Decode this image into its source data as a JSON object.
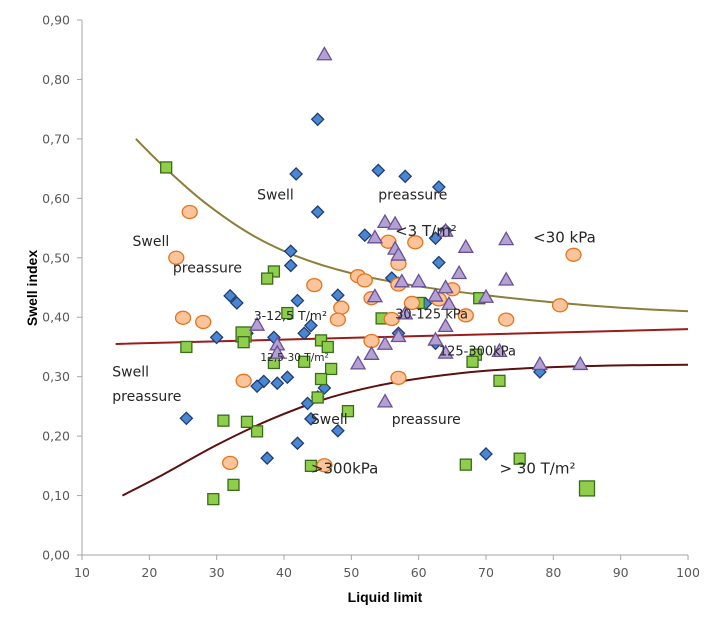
{
  "chart_data": {
    "type": "scatter",
    "title": "",
    "xlabel": "Liquid limit",
    "ylabel": "Swell index",
    "xlim": [
      10,
      100
    ],
    "ylim": [
      0,
      0.9
    ],
    "x_ticks": [
      10,
      20,
      30,
      40,
      50,
      60,
      70,
      80,
      90,
      100
    ],
    "x_tick_labels": [
      "10",
      "20",
      "30",
      "40",
      "50",
      "60",
      "70",
      "80",
      "90",
      "100"
    ],
    "y_ticks": [
      0,
      0.1,
      0.2,
      0.3,
      0.4,
      0.5,
      0.6,
      0.7,
      0.8,
      0.9
    ],
    "y_tick_labels": [
      "0,00",
      "0,10",
      "0,20",
      "0,30",
      "0,40",
      "0,50",
      "0,60",
      "0,70",
      "0,80",
      "0,90"
    ],
    "grid": false,
    "legend": "none",
    "series": [
      {
        "name": "diamonds",
        "marker": "diamond",
        "fill": "#4a86d4",
        "stroke": "#1f3f6e",
        "points": [
          [
            45.0,
            0.733
          ],
          [
            41.8,
            0.641
          ],
          [
            54.0,
            0.647
          ],
          [
            58.0,
            0.637
          ],
          [
            63.0,
            0.619
          ],
          [
            45.0,
            0.577
          ],
          [
            41.0,
            0.511
          ],
          [
            41.0,
            0.487
          ],
          [
            52.0,
            0.538
          ],
          [
            64.0,
            0.546
          ],
          [
            62.5,
            0.533
          ],
          [
            63.0,
            0.492
          ],
          [
            56.0,
            0.466
          ],
          [
            57.0,
            0.457
          ],
          [
            42.0,
            0.428
          ],
          [
            48.0,
            0.437
          ],
          [
            32.0,
            0.436
          ],
          [
            33.0,
            0.424
          ],
          [
            44.0,
            0.386
          ],
          [
            38.5,
            0.366
          ],
          [
            43.0,
            0.373
          ],
          [
            30.0,
            0.366
          ],
          [
            61.0,
            0.423
          ],
          [
            57.0,
            0.373
          ],
          [
            62.5,
            0.356
          ],
          [
            34.5,
            0.373
          ],
          [
            37.0,
            0.292
          ],
          [
            39.0,
            0.289
          ],
          [
            40.5,
            0.299
          ],
          [
            36.0,
            0.284
          ],
          [
            43.5,
            0.255
          ],
          [
            45.0,
            0.266
          ],
          [
            46.0,
            0.281
          ],
          [
            44.0,
            0.229
          ],
          [
            48.0,
            0.209
          ],
          [
            42.0,
            0.188
          ],
          [
            37.5,
            0.163
          ],
          [
            25.5,
            0.23
          ],
          [
            78.0,
            0.308
          ],
          [
            70.0,
            0.17
          ]
        ]
      },
      {
        "name": "squares",
        "marker": "square",
        "fill": "#8fce4a",
        "stroke": "#3a6b1a",
        "points": [
          [
            22.5,
            0.652
          ],
          [
            38.5,
            0.477
          ],
          [
            37.5,
            0.465
          ],
          [
            40.5,
            0.407
          ],
          [
            34.0,
            0.371
          ],
          [
            34.0,
            0.358
          ],
          [
            25.5,
            0.35
          ],
          [
            43.0,
            0.325
          ],
          [
            38.5,
            0.323
          ],
          [
            45.5,
            0.361
          ],
          [
            46.5,
            0.35
          ],
          [
            47.0,
            0.313
          ],
          [
            45.5,
            0.296
          ],
          [
            45.0,
            0.265
          ],
          [
            49.5,
            0.242
          ],
          [
            36.0,
            0.208
          ],
          [
            34.5,
            0.224
          ],
          [
            31.0,
            0.226
          ],
          [
            32.5,
            0.118
          ],
          [
            29.5,
            0.094
          ],
          [
            44.0,
            0.15
          ],
          [
            60.0,
            0.424
          ],
          [
            69.0,
            0.432
          ],
          [
            68.5,
            0.337
          ],
          [
            68.0,
            0.325
          ],
          [
            72.0,
            0.293
          ],
          [
            67.0,
            0.152
          ],
          [
            75.0,
            0.162
          ],
          [
            85.0,
            0.112
          ],
          [
            54.5,
            0.398
          ]
        ]
      },
      {
        "name": "circles",
        "marker": "circle",
        "fill": "#fbc49a",
        "stroke": "#e6741d",
        "points": [
          [
            26.0,
            0.577
          ],
          [
            24.0,
            0.5
          ],
          [
            25.0,
            0.399
          ],
          [
            28.0,
            0.392
          ],
          [
            44.5,
            0.454
          ],
          [
            51.0,
            0.469
          ],
          [
            52.0,
            0.462
          ],
          [
            55.5,
            0.527
          ],
          [
            59.5,
            0.526
          ],
          [
            57.0,
            0.49
          ],
          [
            57.0,
            0.455
          ],
          [
            48.5,
            0.416
          ],
          [
            48.0,
            0.396
          ],
          [
            53.0,
            0.432
          ],
          [
            56.0,
            0.397
          ],
          [
            59.0,
            0.424
          ],
          [
            63.0,
            0.43
          ],
          [
            65.0,
            0.447
          ],
          [
            67.0,
            0.403
          ],
          [
            73.0,
            0.396
          ],
          [
            81.0,
            0.42
          ],
          [
            83.0,
            0.505
          ],
          [
            53.0,
            0.36
          ],
          [
            57.0,
            0.298
          ],
          [
            34.0,
            0.293
          ],
          [
            32.0,
            0.155
          ],
          [
            46.0,
            0.151
          ]
        ]
      },
      {
        "name": "triangles",
        "marker": "triangle",
        "fill": "#b3a2d1",
        "stroke": "#6a4f99",
        "points": [
          [
            46.0,
            0.842
          ],
          [
            55.0,
            0.56
          ],
          [
            56.5,
            0.557
          ],
          [
            53.5,
            0.534
          ],
          [
            56.5,
            0.515
          ],
          [
            57.0,
            0.505
          ],
          [
            64.0,
            0.545
          ],
          [
            67.0,
            0.518
          ],
          [
            73.0,
            0.531
          ],
          [
            66.0,
            0.474
          ],
          [
            57.5,
            0.46
          ],
          [
            60.0,
            0.46
          ],
          [
            64.0,
            0.45
          ],
          [
            62.5,
            0.436
          ],
          [
            64.5,
            0.422
          ],
          [
            73.0,
            0.463
          ],
          [
            70.0,
            0.434
          ],
          [
            53.5,
            0.435
          ],
          [
            58.0,
            0.406
          ],
          [
            64.0,
            0.385
          ],
          [
            62.5,
            0.362
          ],
          [
            64.0,
            0.34
          ],
          [
            57.0,
            0.368
          ],
          [
            55.0,
            0.355
          ],
          [
            53.0,
            0.338
          ],
          [
            51.0,
            0.322
          ],
          [
            72.0,
            0.343
          ],
          [
            36.0,
            0.387
          ],
          [
            39.0,
            0.354
          ],
          [
            39.0,
            0.34
          ],
          [
            55.0,
            0.258
          ],
          [
            78.0,
            0.321
          ],
          [
            84.0,
            0.321
          ]
        ]
      }
    ],
    "curves": [
      {
        "name": "upper-boundary-curve",
        "color": "#8b7f3a",
        "points": [
          [
            18,
            0.7
          ],
          [
            22,
            0.655
          ],
          [
            28,
            0.595
          ],
          [
            35,
            0.54
          ],
          [
            42,
            0.502
          ],
          [
            50,
            0.474
          ],
          [
            60,
            0.452
          ],
          [
            70,
            0.437
          ],
          [
            80,
            0.425
          ],
          [
            90,
            0.416
          ],
          [
            100,
            0.41
          ]
        ]
      },
      {
        "name": "middle-boundary-line",
        "color": "#9b1c1c",
        "points": [
          [
            15,
            0.355
          ],
          [
            100,
            0.38
          ]
        ]
      },
      {
        "name": "lower-boundary-curve",
        "color": "#5c1010",
        "points": [
          [
            16,
            0.1
          ],
          [
            22,
            0.135
          ],
          [
            30,
            0.185
          ],
          [
            38,
            0.228
          ],
          [
            46,
            0.262
          ],
          [
            54,
            0.285
          ],
          [
            62,
            0.3
          ],
          [
            70,
            0.31
          ],
          [
            80,
            0.316
          ],
          [
            90,
            0.319
          ],
          [
            100,
            0.32
          ]
        ]
      }
    ],
    "annotations": [
      {
        "text": "Swell",
        "x": 36.0,
        "y": 0.598,
        "size": 14
      },
      {
        "text": "preassure",
        "x": 54.0,
        "y": 0.598,
        "size": 14
      },
      {
        "text": "<3 T/m²",
        "x": 56.5,
        "y": 0.537,
        "size": 15
      },
      {
        "text": "<30 kPa",
        "x": 77.0,
        "y": 0.526,
        "size": 15
      },
      {
        "text": "Swell",
        "x": 17.5,
        "y": 0.52,
        "size": 14
      },
      {
        "text": "preassure",
        "x": 23.5,
        "y": 0.475,
        "size": 14
      },
      {
        "text": "3-12,5 T/m²",
        "x": 35.5,
        "y": 0.395,
        "size": 12.5
      },
      {
        "text": "30-125 kPa",
        "x": 56.5,
        "y": 0.398,
        "size": 13
      },
      {
        "text": "12,5-30 T/m²",
        "x": 36.5,
        "y": 0.326,
        "size": 10.5
      },
      {
        "text": "125-300kPa",
        "x": 63.0,
        "y": 0.336,
        "size": 13
      },
      {
        "text": "Swell",
        "x": 14.5,
        "y": 0.3,
        "size": 14
      },
      {
        "text": "preassure",
        "x": 14.5,
        "y": 0.259,
        "size": 14
      },
      {
        "text": "Swell",
        "x": 44.0,
        "y": 0.22,
        "size": 14
      },
      {
        "text": "preassure",
        "x": 56.0,
        "y": 0.22,
        "size": 14
      },
      {
        "text": ">300kPa",
        "x": 44.0,
        "y": 0.137,
        "size": 15
      },
      {
        "text": "> 30 T/m²",
        "x": 72.0,
        "y": 0.137,
        "size": 15
      }
    ]
  }
}
